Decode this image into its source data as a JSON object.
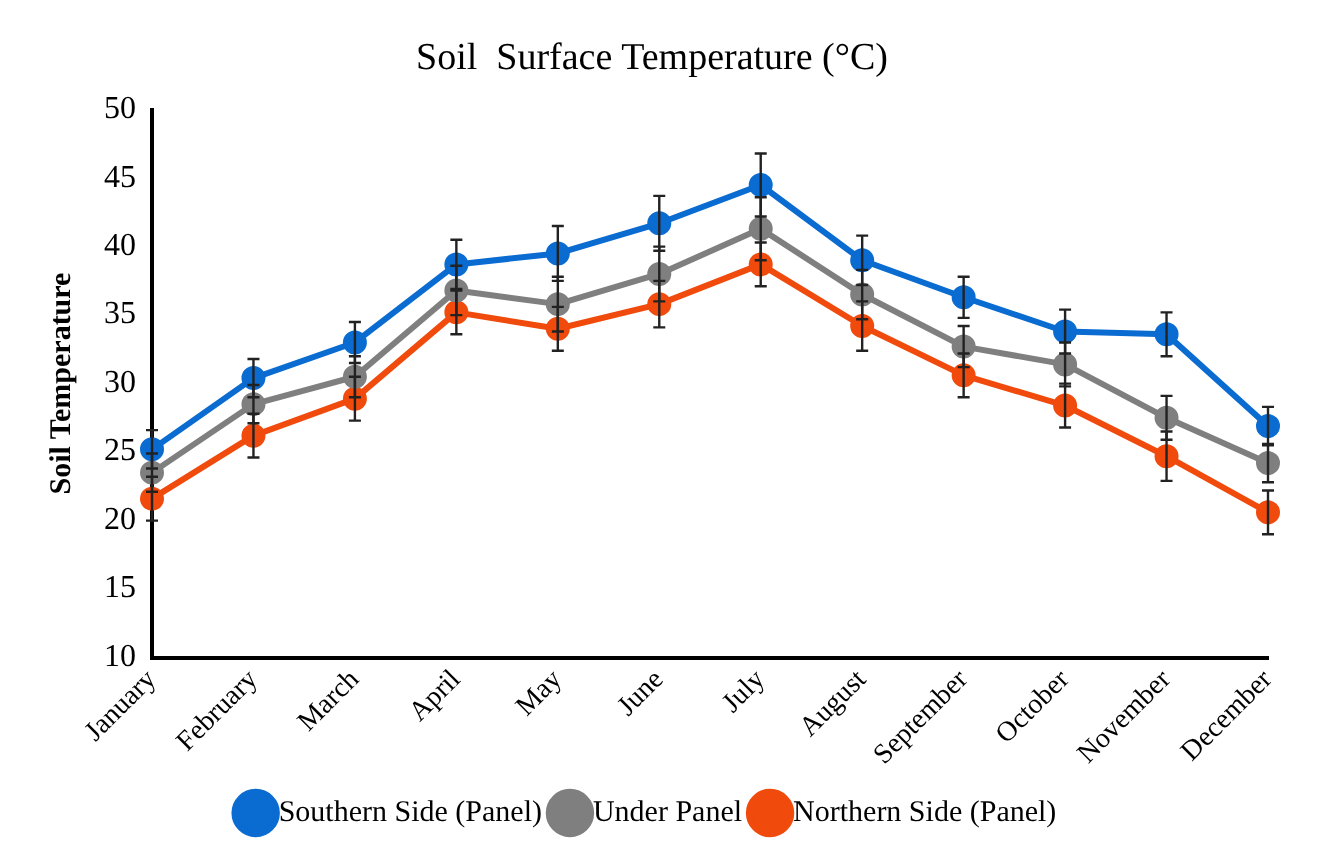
{
  "chart_data": {
    "type": "line",
    "title": "Soil  Surface Temperature (°C)",
    "ylabel": "Soil Temperature",
    "categories": [
      "January",
      "February",
      "March",
      "April",
      "May",
      "June",
      "July",
      "August",
      "September",
      "October",
      "November",
      "December"
    ],
    "series": [
      {
        "name": "Southern Side (Panel)",
        "color": "#0a6bd1",
        "values": [
          25.2,
          30.4,
          33,
          38.7,
          39.5,
          41.7,
          44.5,
          39,
          36.3,
          33.8,
          33.6,
          26.9
        ],
        "errors": [
          1.4,
          1.4,
          1.5,
          1.8,
          2,
          2,
          2.3,
          1.8,
          1.5,
          1.6,
          1.6,
          1.4
        ]
      },
      {
        "name": "Under Panel",
        "color": "#7f7f7f",
        "values": [
          23.5,
          28.5,
          30.5,
          36.8,
          35.8,
          38,
          41.3,
          36.5,
          32.7,
          31.4,
          27.5,
          24.2
        ],
        "errors": [
          1.4,
          1.4,
          1.5,
          1.8,
          2,
          2,
          2.3,
          1.8,
          1.5,
          1.6,
          1.6,
          1.4
        ]
      },
      {
        "name": "Northern Side (Panel)",
        "color": "#f04a0c",
        "values": [
          21.6,
          26.2,
          28.9,
          35.2,
          34,
          35.8,
          38.7,
          34.2,
          30.6,
          28.4,
          24.7,
          20.6
        ],
        "errors": [
          1.6,
          1.6,
          1.6,
          1.6,
          1.6,
          1.7,
          1.6,
          1.8,
          1.6,
          1.6,
          1.8,
          1.6
        ]
      }
    ],
    "ylim": [
      10,
      50
    ],
    "yticks": [
      10,
      15,
      20,
      25,
      30,
      35,
      40,
      45,
      50
    ],
    "grid": false,
    "legend": "bottom",
    "marker": "circle",
    "line_style": "solid"
  }
}
